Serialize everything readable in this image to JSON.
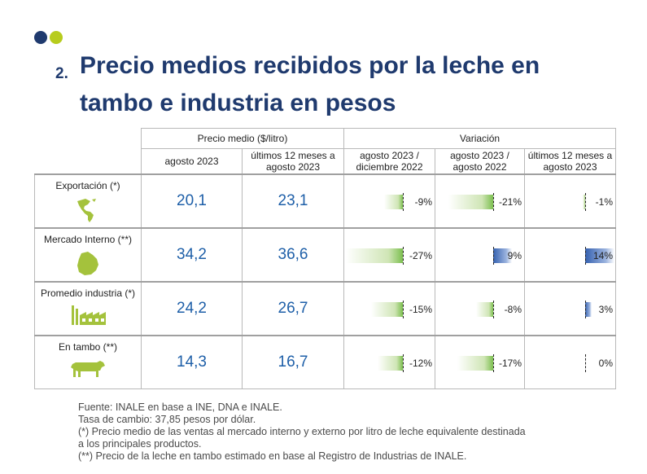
{
  "title": {
    "number": "2.",
    "line1": "Precio medios recibidos por la leche en",
    "line2": "tambo e industria en pesos"
  },
  "table": {
    "group_headers": {
      "precio_medio": "Precio medio ($/litro)",
      "variacion": "Variación"
    },
    "columns": [
      "agosto 2023",
      "últimos 12 meses a agosto 2023",
      "agosto 2023 / diciembre 2022",
      "agosto 2023 / agosto 2022",
      "últimos 12 meses a agosto 2023"
    ],
    "rows": [
      {
        "label": "Exportación (*)",
        "icon": "americas-map-icon",
        "agosto_2023": "20,1",
        "ultimos_12": "23,1",
        "var_dic22": {
          "text": "-9%",
          "value": -9
        },
        "var_ago22": {
          "text": "-21%",
          "value": -21
        },
        "var_12m": {
          "text": "-1%",
          "value": -1
        }
      },
      {
        "label": "Mercado Interno (**)",
        "icon": "uruguay-map-icon",
        "agosto_2023": "34,2",
        "ultimos_12": "36,6",
        "var_dic22": {
          "text": "-27%",
          "value": -27
        },
        "var_ago22": {
          "text": "9%",
          "value": 9
        },
        "var_12m": {
          "text": "14%",
          "value": 14
        }
      },
      {
        "label": "Promedio industria (*)",
        "icon": "factory-icon",
        "agosto_2023": "24,2",
        "ultimos_12": "26,7",
        "var_dic22": {
          "text": "-15%",
          "value": -15
        },
        "var_ago22": {
          "text": "-8%",
          "value": -8
        },
        "var_12m": {
          "text": "3%",
          "value": 3
        }
      },
      {
        "label": "En tambo (**)",
        "icon": "cow-icon",
        "agosto_2023": "14,3",
        "ultimos_12": "16,7",
        "var_dic22": {
          "text": "-12%",
          "value": -12
        },
        "var_ago22": {
          "text": "-17%",
          "value": -17
        },
        "var_12m": {
          "text": "0%",
          "value": 0
        }
      }
    ]
  },
  "notes": [
    "Fuente: INALE en base a INE, DNA e INALE.",
    "Tasa de cambio: 37,85 pesos por dólar.",
    "(*) Precio medio de las ventas al mercado interno y externo por litro de leche equivalente destinada",
    "a los principales productos.",
    "(**) Precio de la leche en tambo estimado en base al Registro de Industrias de INALE."
  ],
  "colors": {
    "title": "#1f3a6e",
    "dot_primary": "#1f3a6e",
    "dot_accent": "#b7cc1d",
    "value_text": "#1e5fa8",
    "negative_bar": "#7cbf4f",
    "positive_bar": "#3561b0"
  }
}
